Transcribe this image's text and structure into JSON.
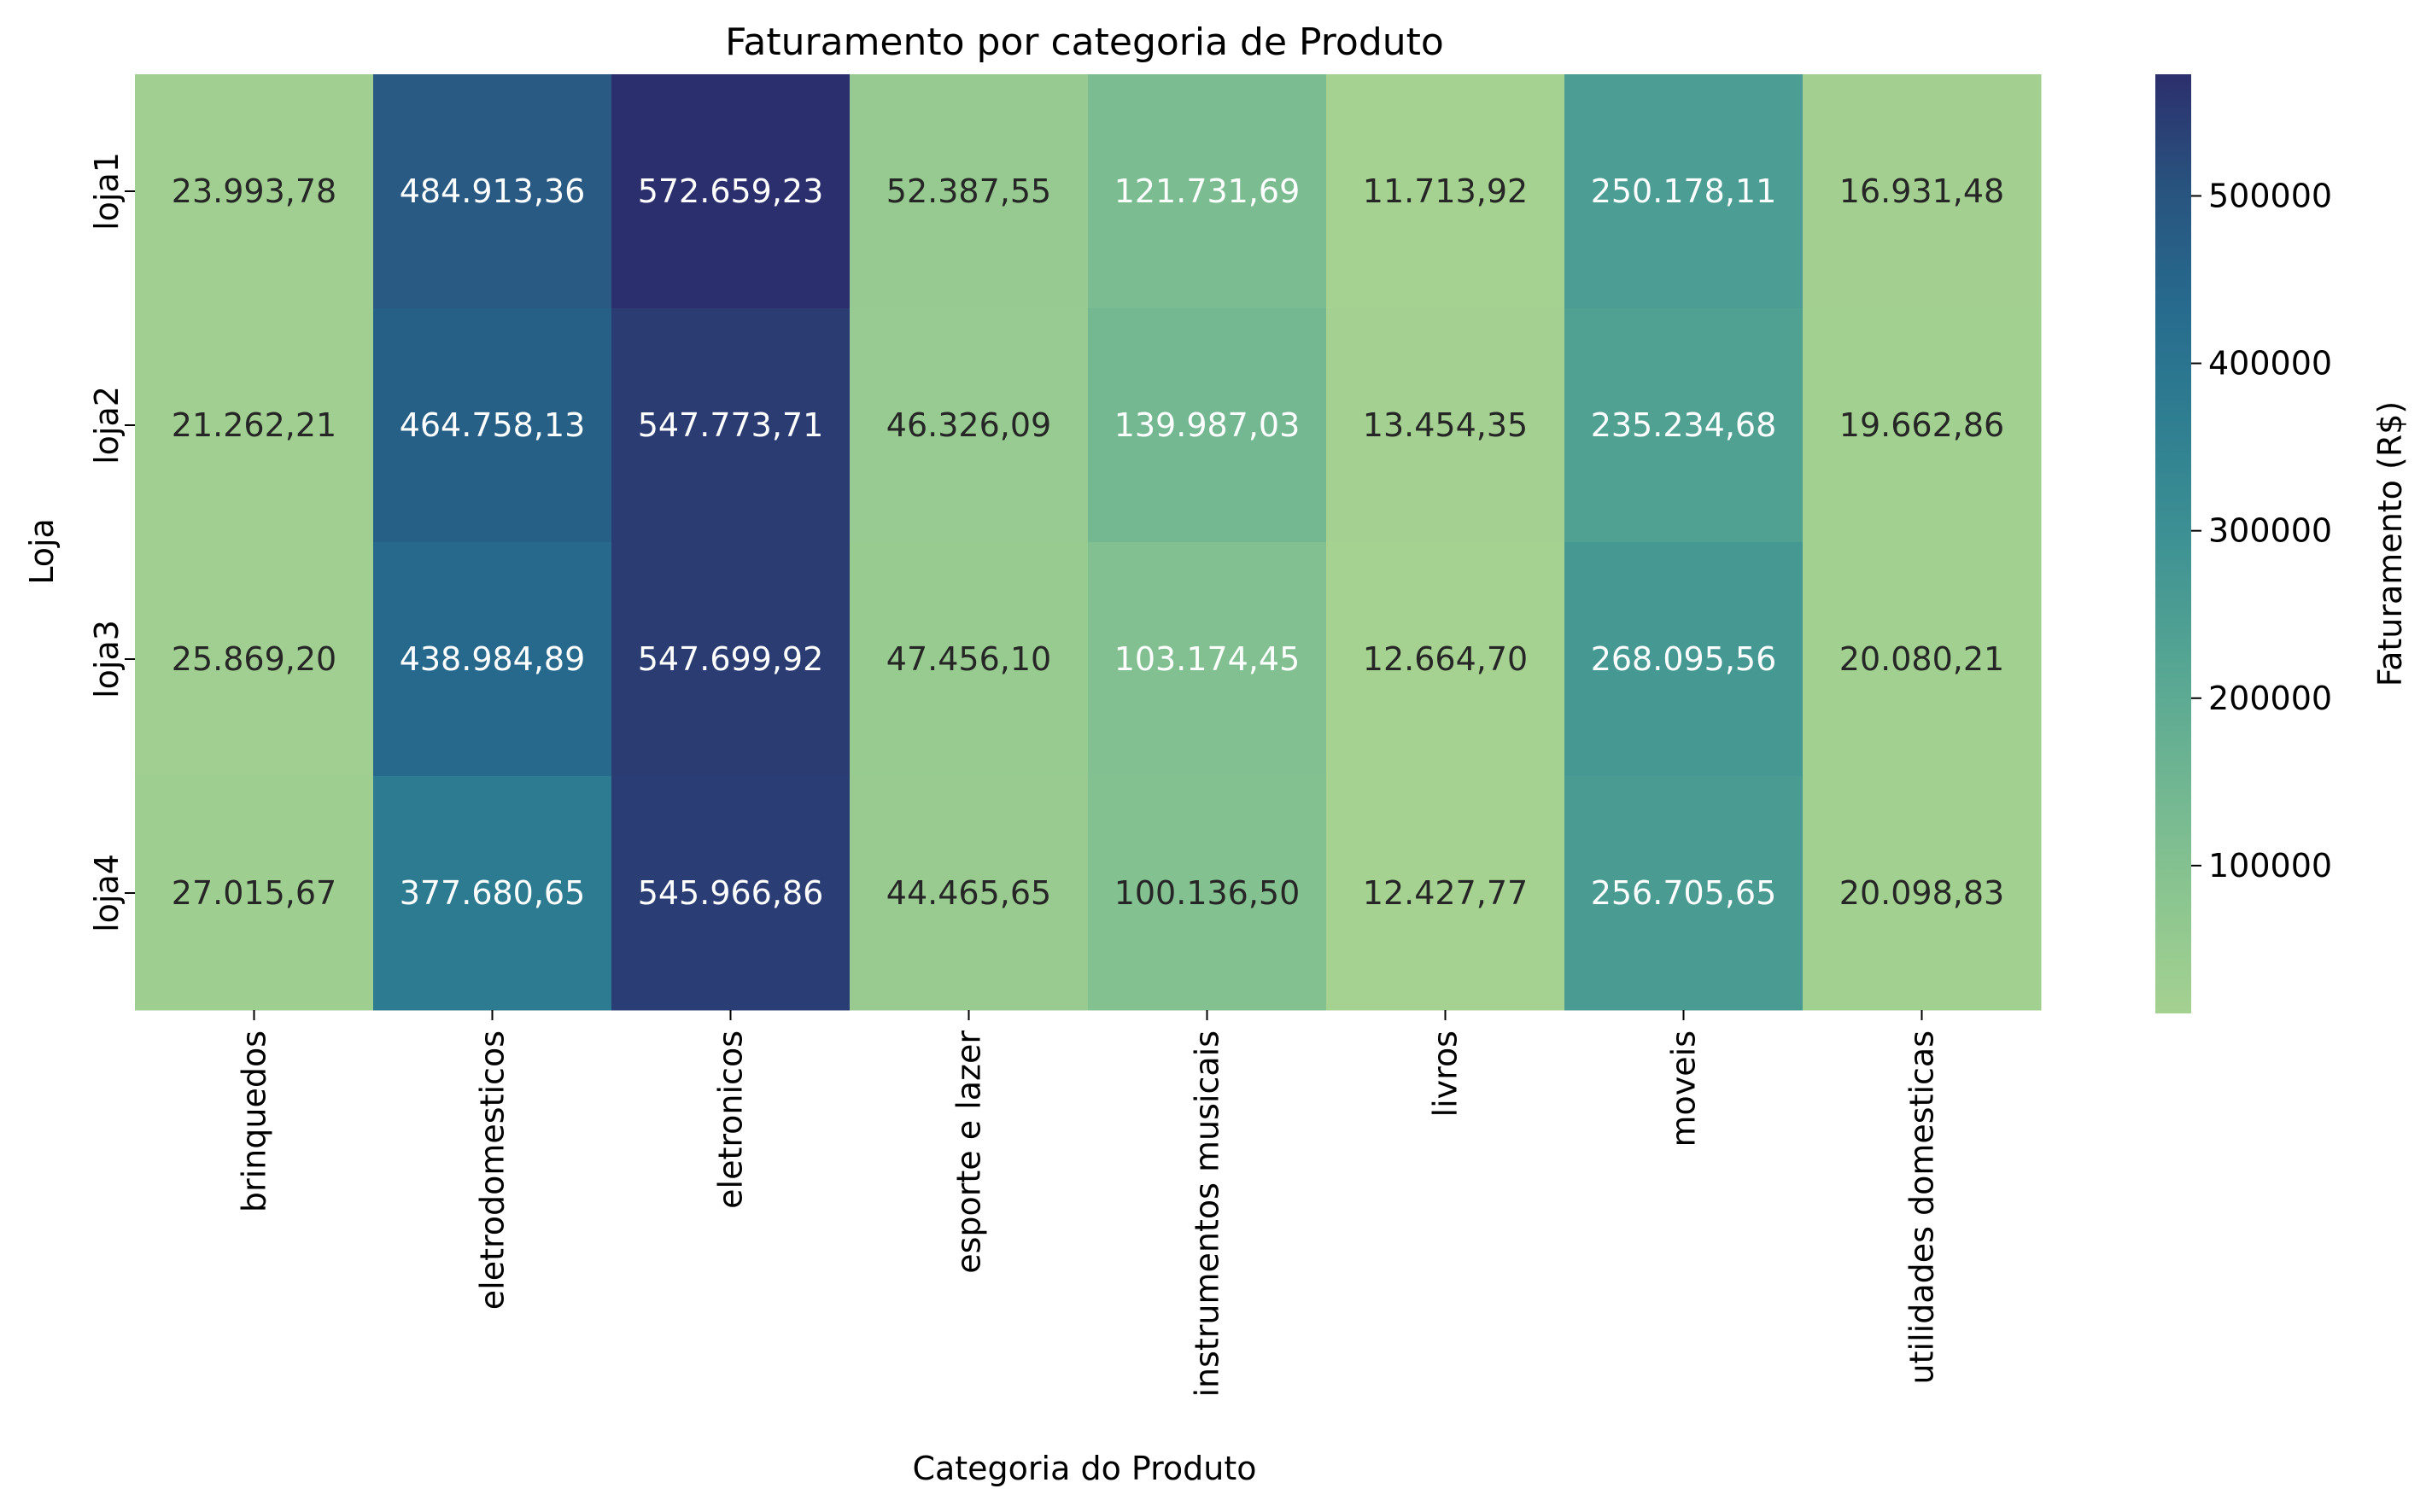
{
  "chart_data": {
    "type": "heatmap",
    "title": "Faturamento por categoria de Produto",
    "xlabel": "Categoria do Produto",
    "ylabel": "Loja",
    "colorbar_label": "Faturamento (R$)",
    "colormap": "crest",
    "color_range": [
      11713.92,
      572659.23
    ],
    "colorbar_ticks": [
      100000,
      200000,
      300000,
      400000,
      500000
    ],
    "colorbar_tick_labels": [
      "100000",
      "200000",
      "300000",
      "400000",
      "500000"
    ],
    "rows": [
      "loja1",
      "loja2",
      "loja3",
      "loja4"
    ],
    "columns": [
      "brinquedos",
      "eletrodomesticos",
      "eletronicos",
      "esporte e lazer",
      "instrumentos musicais",
      "livros",
      "moveis",
      "utilidades domesticas"
    ],
    "values": [
      [
        23993.78,
        484913.36,
        572659.23,
        52387.55,
        121731.69,
        11713.92,
        250178.11,
        16931.48
      ],
      [
        21262.21,
        464758.13,
        547773.71,
        46326.09,
        139987.03,
        13454.35,
        235234.68,
        19662.86
      ],
      [
        25869.2,
        438984.89,
        547699.92,
        47456.1,
        103174.45,
        12664.7,
        268095.56,
        20080.21
      ],
      [
        27015.67,
        377680.65,
        545966.86,
        44465.65,
        100136.5,
        12427.77,
        256705.65,
        20098.83
      ]
    ],
    "cell_labels": [
      [
        "23.993,78",
        "484.913,36",
        "572.659,23",
        "52.387,55",
        "121.731,69",
        "11.713,92",
        "250.178,11",
        "16.931,48"
      ],
      [
        "21.262,21",
        "464.758,13",
        "547.773,71",
        "46.326,09",
        "139.987,03",
        "13.454,35",
        "235.234,68",
        "19.662,86"
      ],
      [
        "25.869,20",
        "438.984,89",
        "547.699,92",
        "47.456,10",
        "103.174,45",
        "12.664,70",
        "268.095,56",
        "20.080,21"
      ],
      [
        "27.015,67",
        "377.680,65",
        "545.966,86",
        "44.465,65",
        "100.136,50",
        "12.427,77",
        "256.705,65",
        "20.098,83"
      ]
    ]
  }
}
